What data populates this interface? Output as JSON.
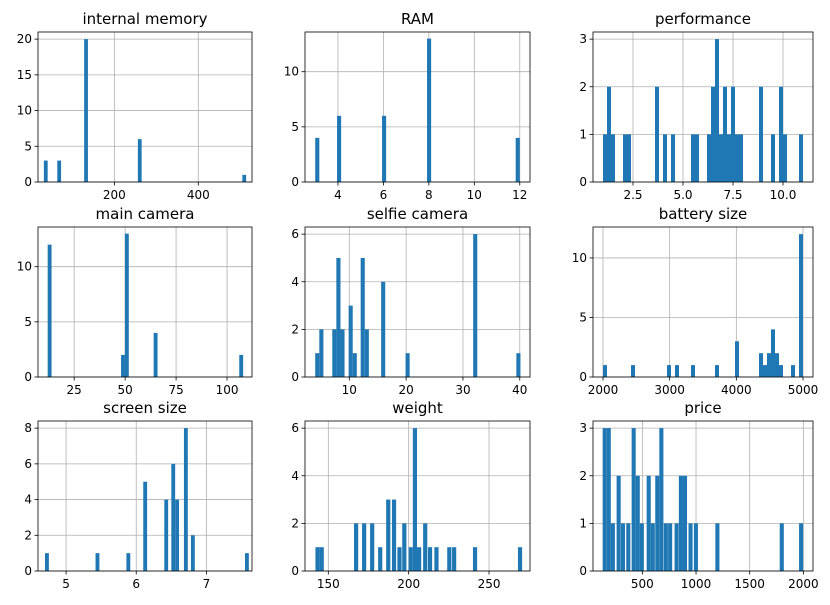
{
  "chart_data": [
    {
      "type": "bar",
      "title": "internal memory",
      "xlim": [
        18,
        528
      ],
      "ylim": [
        0,
        21
      ],
      "xticks": [
        200,
        400
      ],
      "yticks": [
        0,
        5,
        10,
        15,
        20
      ],
      "xticklabels": [
        "200",
        "400"
      ],
      "yticklabels": [
        "0",
        "5",
        "10",
        "15",
        "20"
      ],
      "grid": true,
      "bins": [
        {
          "x": [
            32,
            41
          ],
          "count": 3
        },
        {
          "x": [
            64,
            73
          ],
          "count": 3
        },
        {
          "x": [
            128,
            137
          ],
          "count": 20
        },
        {
          "x": [
            256,
            265
          ],
          "count": 6
        },
        {
          "x": [
            505,
            514
          ],
          "count": 1
        }
      ]
    },
    {
      "type": "bar",
      "title": "RAM",
      "xlim": [
        2.55,
        12.45
      ],
      "ylim": [
        0,
        13.6
      ],
      "xticks": [
        4,
        6,
        8,
        10,
        12
      ],
      "yticks": [
        0,
        5,
        10
      ],
      "xticklabels": [
        "4",
        "6",
        "8",
        "10",
        "12"
      ],
      "yticklabels": [
        "0",
        "5",
        "10"
      ],
      "grid": true,
      "bins": [
        {
          "x": [
            3.0,
            3.18
          ],
          "count": 4
        },
        {
          "x": [
            3.96,
            4.14
          ],
          "count": 6
        },
        {
          "x": [
            5.94,
            6.12
          ],
          "count": 6
        },
        {
          "x": [
            7.92,
            8.1
          ],
          "count": 13
        },
        {
          "x": [
            11.82,
            12.0
          ],
          "count": 4
        }
      ]
    },
    {
      "type": "bar",
      "title": "performance",
      "xlim": [
        0.5,
        11.5
      ],
      "ylim": [
        0,
        3.15
      ],
      "xticks": [
        2.5,
        5.0,
        7.5,
        10.0
      ],
      "yticks": [
        0,
        1,
        2,
        3
      ],
      "xticklabels": [
        "2.5",
        "5.0",
        "7.5",
        "10.0"
      ],
      "yticklabels": [
        "0",
        "1",
        "2",
        "3"
      ],
      "grid": true,
      "bins": [
        {
          "x": [
            1.0,
            1.2
          ],
          "count": 1
        },
        {
          "x": [
            1.2,
            1.4
          ],
          "count": 2
        },
        {
          "x": [
            1.4,
            1.6
          ],
          "count": 1
        },
        {
          "x": [
            2.0,
            2.2
          ],
          "count": 1
        },
        {
          "x": [
            2.2,
            2.4
          ],
          "count": 1
        },
        {
          "x": [
            3.6,
            3.8
          ],
          "count": 2
        },
        {
          "x": [
            4.0,
            4.2
          ],
          "count": 1
        },
        {
          "x": [
            4.4,
            4.6
          ],
          "count": 1
        },
        {
          "x": [
            5.4,
            5.6
          ],
          "count": 1
        },
        {
          "x": [
            5.6,
            5.8
          ],
          "count": 1
        },
        {
          "x": [
            6.2,
            6.4
          ],
          "count": 1
        },
        {
          "x": [
            6.4,
            6.6
          ],
          "count": 2
        },
        {
          "x": [
            6.6,
            6.8
          ],
          "count": 3
        },
        {
          "x": [
            6.8,
            7.0
          ],
          "count": 1
        },
        {
          "x": [
            7.0,
            7.2
          ],
          "count": 2
        },
        {
          "x": [
            7.2,
            7.4
          ],
          "count": 1
        },
        {
          "x": [
            7.4,
            7.6
          ],
          "count": 2
        },
        {
          "x": [
            7.6,
            7.8
          ],
          "count": 1
        },
        {
          "x": [
            7.8,
            8.0
          ],
          "count": 1
        },
        {
          "x": [
            8.8,
            9.0
          ],
          "count": 2
        },
        {
          "x": [
            9.4,
            9.6
          ],
          "count": 1
        },
        {
          "x": [
            9.8,
            10.0
          ],
          "count": 2
        },
        {
          "x": [
            10.0,
            10.2
          ],
          "count": 1
        },
        {
          "x": [
            10.8,
            11.0
          ],
          "count": 1
        }
      ]
    },
    {
      "type": "bar",
      "title": "main camera",
      "xlim": [
        7.25,
        112.25
      ],
      "ylim": [
        0,
        13.6
      ],
      "xticks": [
        25,
        50,
        75,
        100
      ],
      "yticks": [
        0,
        5,
        10
      ],
      "xticklabels": [
        "25",
        "50",
        "75",
        "100"
      ],
      "yticklabels": [
        "0",
        "5",
        "10"
      ],
      "grid": true,
      "bins": [
        {
          "x": [
            12.0,
            13.9
          ],
          "count": 12
        },
        {
          "x": [
            48.0,
            49.9
          ],
          "count": 2
        },
        {
          "x": [
            49.9,
            51.8
          ],
          "count": 13
        },
        {
          "x": [
            64.0,
            65.9
          ],
          "count": 4
        },
        {
          "x": [
            106.0,
            107.9
          ],
          "count": 2
        }
      ]
    },
    {
      "type": "bar",
      "title": "selfie camera",
      "xlim": [
        2.2,
        41.8
      ],
      "ylim": [
        0,
        6.3
      ],
      "xticks": [
        10,
        20,
        30,
        40
      ],
      "yticks": [
        0,
        2,
        4,
        6
      ],
      "xticklabels": [
        "10",
        "20",
        "30",
        "40"
      ],
      "yticklabels": [
        "0",
        "2",
        "4",
        "6"
      ],
      "grid": true,
      "bins": [
        {
          "x": [
            4.0,
            4.72
          ],
          "count": 1
        },
        {
          "x": [
            4.72,
            5.44
          ],
          "count": 2
        },
        {
          "x": [
            7.0,
            7.72
          ],
          "count": 2
        },
        {
          "x": [
            7.72,
            8.44
          ],
          "count": 5
        },
        {
          "x": [
            8.44,
            9.16
          ],
          "count": 2
        },
        {
          "x": [
            9.88,
            10.6
          ],
          "count": 3
        },
        {
          "x": [
            10.6,
            11.32
          ],
          "count": 1
        },
        {
          "x": [
            12.0,
            12.72
          ],
          "count": 5
        },
        {
          "x": [
            12.72,
            13.44
          ],
          "count": 2
        },
        {
          "x": [
            15.6,
            16.32
          ],
          "count": 4
        },
        {
          "x": [
            19.9,
            20.62
          ],
          "count": 1
        },
        {
          "x": [
            31.8,
            32.52
          ],
          "count": 6
        },
        {
          "x": [
            39.4,
            40.12
          ],
          "count": 1
        }
      ]
    },
    {
      "type": "bar",
      "title": "battery size",
      "xlim": [
        1850,
        5150
      ],
      "ylim": [
        0,
        12.6
      ],
      "xticks": [
        2000,
        3000,
        4000,
        5000
      ],
      "yticks": [
        0,
        5,
        10
      ],
      "xticklabels": [
        "2000",
        "3000",
        "4000",
        "5000"
      ],
      "yticklabels": [
        "0",
        "5",
        "10"
      ],
      "grid": true,
      "bins": [
        {
          "x": [
            2000,
            2060
          ],
          "count": 1
        },
        {
          "x": [
            2420,
            2480
          ],
          "count": 1
        },
        {
          "x": [
            2960,
            3020
          ],
          "count": 1
        },
        {
          "x": [
            3080,
            3140
          ],
          "count": 1
        },
        {
          "x": [
            3320,
            3380
          ],
          "count": 1
        },
        {
          "x": [
            3680,
            3740
          ],
          "count": 1
        },
        {
          "x": [
            3980,
            4040
          ],
          "count": 3
        },
        {
          "x": [
            4340,
            4400
          ],
          "count": 2
        },
        {
          "x": [
            4400,
            4460
          ],
          "count": 1
        },
        {
          "x": [
            4460,
            4520
          ],
          "count": 2
        },
        {
          "x": [
            4520,
            4580
          ],
          "count": 4
        },
        {
          "x": [
            4580,
            4640
          ],
          "count": 2
        },
        {
          "x": [
            4640,
            4700
          ],
          "count": 1
        },
        {
          "x": [
            4820,
            4880
          ],
          "count": 1
        },
        {
          "x": [
            4940,
            5000
          ],
          "count": 12
        }
      ]
    },
    {
      "type": "bar",
      "title": "screen size",
      "xlim": [
        4.6,
        7.65
      ],
      "ylim": [
        0,
        8.4
      ],
      "xticks": [
        5,
        6,
        7
      ],
      "yticks": [
        0,
        2,
        4,
        6,
        8
      ],
      "xticklabels": [
        "5",
        "6",
        "7"
      ],
      "yticklabels": [
        "0",
        "2",
        "4",
        "6",
        "8"
      ],
      "grid": true,
      "bins": [
        {
          "x": [
            4.7,
            4.755
          ],
          "count": 1
        },
        {
          "x": [
            5.42,
            5.475
          ],
          "count": 1
        },
        {
          "x": [
            5.86,
            5.915
          ],
          "count": 1
        },
        {
          "x": [
            6.1,
            6.155
          ],
          "count": 5
        },
        {
          "x": [
            6.4,
            6.455
          ],
          "count": 4
        },
        {
          "x": [
            6.5,
            6.555
          ],
          "count": 6
        },
        {
          "x": [
            6.555,
            6.61
          ],
          "count": 4
        },
        {
          "x": [
            6.68,
            6.735
          ],
          "count": 8
        },
        {
          "x": [
            6.78,
            6.835
          ],
          "count": 2
        },
        {
          "x": [
            7.55,
            7.605
          ],
          "count": 1
        }
      ]
    },
    {
      "type": "bar",
      "title": "weight",
      "xlim": [
        135.5,
        275.5
      ],
      "ylim": [
        0,
        6.3
      ],
      "xticks": [
        150,
        200,
        250
      ],
      "yticks": [
        0,
        2,
        4,
        6
      ],
      "xticklabels": [
        "150",
        "200",
        "250"
      ],
      "yticklabels": [
        "0",
        "2",
        "4",
        "6"
      ],
      "grid": true,
      "bins": [
        {
          "x": [
            142.0,
            144.6
          ],
          "count": 1
        },
        {
          "x": [
            144.6,
            147.2
          ],
          "count": 1
        },
        {
          "x": [
            166.0,
            168.6
          ],
          "count": 2
        },
        {
          "x": [
            171.0,
            173.6
          ],
          "count": 2
        },
        {
          "x": [
            176.0,
            178.6
          ],
          "count": 2
        },
        {
          "x": [
            181.0,
            183.6
          ],
          "count": 1
        },
        {
          "x": [
            186.0,
            188.6
          ],
          "count": 3
        },
        {
          "x": [
            189.6,
            192.2
          ],
          "count": 3
        },
        {
          "x": [
            193.0,
            195.6
          ],
          "count": 1
        },
        {
          "x": [
            196.0,
            198.6
          ],
          "count": 2
        },
        {
          "x": [
            200.0,
            202.6
          ],
          "count": 1
        },
        {
          "x": [
            202.6,
            205.2
          ],
          "count": 6
        },
        {
          "x": [
            205.2,
            207.8
          ],
          "count": 1
        },
        {
          "x": [
            209.0,
            211.6
          ],
          "count": 2
        },
        {
          "x": [
            212.0,
            214.6
          ],
          "count": 1
        },
        {
          "x": [
            216.0,
            218.6
          ],
          "count": 1
        },
        {
          "x": [
            224.0,
            226.6
          ],
          "count": 1
        },
        {
          "x": [
            227.0,
            229.6
          ],
          "count": 1
        },
        {
          "x": [
            240.0,
            242.6
          ],
          "count": 1
        },
        {
          "x": [
            268.0,
            270.6
          ],
          "count": 1
        }
      ]
    },
    {
      "type": "bar",
      "title": "price",
      "xlim": [
        40,
        2090
      ],
      "ylim": [
        0,
        3.15
      ],
      "xticks": [
        500,
        1000,
        1500,
        2000
      ],
      "yticks": [
        0,
        1,
        2,
        3
      ],
      "xticklabels": [
        "500",
        "1000",
        "1500",
        "2000"
      ],
      "yticklabels": [
        "0",
        "1",
        "2",
        "3"
      ],
      "grid": true,
      "bins": [
        {
          "x": [
            130,
            168
          ],
          "count": 3
        },
        {
          "x": [
            168,
            206
          ],
          "count": 3
        },
        {
          "x": [
            206,
            244
          ],
          "count": 1
        },
        {
          "x": [
            260,
            298
          ],
          "count": 2
        },
        {
          "x": [
            300,
            338
          ],
          "count": 1
        },
        {
          "x": [
            350,
            388
          ],
          "count": 1
        },
        {
          "x": [
            400,
            438
          ],
          "count": 3
        },
        {
          "x": [
            438,
            476
          ],
          "count": 2
        },
        {
          "x": [
            476,
            514
          ],
          "count": 1
        },
        {
          "x": [
            540,
            578
          ],
          "count": 2
        },
        {
          "x": [
            578,
            616
          ],
          "count": 1
        },
        {
          "x": [
            620,
            658
          ],
          "count": 2
        },
        {
          "x": [
            658,
            696
          ],
          "count": 3
        },
        {
          "x": [
            700,
            738
          ],
          "count": 1
        },
        {
          "x": [
            740,
            778
          ],
          "count": 1
        },
        {
          "x": [
            800,
            838
          ],
          "count": 1
        },
        {
          "x": [
            840,
            878
          ],
          "count": 2
        },
        {
          "x": [
            878,
            916
          ],
          "count": 2
        },
        {
          "x": [
            930,
            968
          ],
          "count": 1
        },
        {
          "x": [
            980,
            1018
          ],
          "count": 1
        },
        {
          "x": [
            1180,
            1218
          ],
          "count": 1
        },
        {
          "x": [
            1780,
            1818
          ],
          "count": 1
        },
        {
          "x": [
            1960,
            1998
          ],
          "count": 1
        }
      ]
    }
  ],
  "colors": {
    "bar": "#1f77b4",
    "grid": "#b0b0b0",
    "axis": "#000000"
  }
}
